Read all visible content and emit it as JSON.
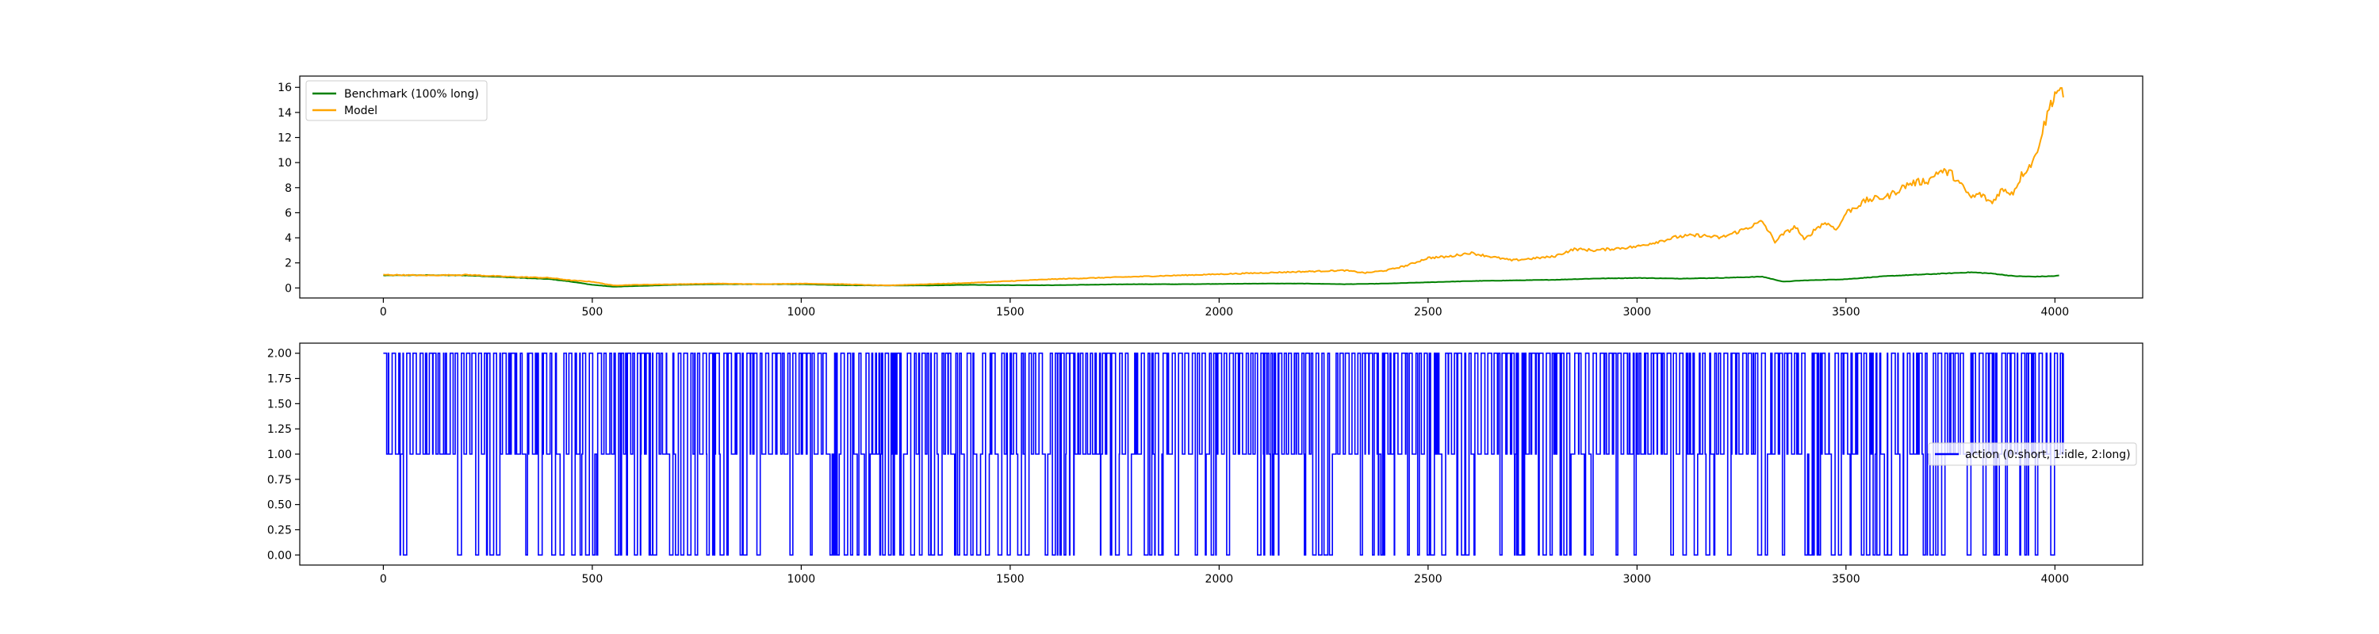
{
  "chart_data": [
    {
      "type": "line",
      "title": "",
      "xlabel": "",
      "ylabel": "",
      "xlim": [
        -200,
        4210
      ],
      "ylim": [
        -0.8,
        16.9
      ],
      "xticks": [
        0,
        500,
        1000,
        1500,
        2000,
        2500,
        3000,
        3500,
        4000
      ],
      "yticks": [
        0,
        2,
        4,
        6,
        8,
        10,
        12,
        14,
        16
      ],
      "grid": false,
      "legend": "top-left",
      "series": [
        {
          "name": "Benchmark (100% long)",
          "color": "#008000",
          "points": [
            [
              0,
              1.0
            ],
            [
              100,
              1.02
            ],
            [
              200,
              1.0
            ],
            [
              300,
              0.85
            ],
            [
              400,
              0.7
            ],
            [
              450,
              0.5
            ],
            [
              500,
              0.25
            ],
            [
              550,
              0.1
            ],
            [
              600,
              0.15
            ],
            [
              700,
              0.25
            ],
            [
              800,
              0.3
            ],
            [
              900,
              0.3
            ],
            [
              1000,
              0.3
            ],
            [
              1100,
              0.22
            ],
            [
              1200,
              0.2
            ],
            [
              1300,
              0.2
            ],
            [
              1400,
              0.25
            ],
            [
              1500,
              0.22
            ],
            [
              1600,
              0.22
            ],
            [
              1700,
              0.26
            ],
            [
              1800,
              0.3
            ],
            [
              1900,
              0.3
            ],
            [
              2000,
              0.32
            ],
            [
              2100,
              0.35
            ],
            [
              2200,
              0.35
            ],
            [
              2300,
              0.3
            ],
            [
              2400,
              0.35
            ],
            [
              2500,
              0.45
            ],
            [
              2600,
              0.55
            ],
            [
              2700,
              0.6
            ],
            [
              2800,
              0.65
            ],
            [
              2900,
              0.75
            ],
            [
              3000,
              0.8
            ],
            [
              3100,
              0.75
            ],
            [
              3200,
              0.8
            ],
            [
              3300,
              0.9
            ],
            [
              3350,
              0.5
            ],
            [
              3400,
              0.6
            ],
            [
              3500,
              0.7
            ],
            [
              3600,
              0.95
            ],
            [
              3700,
              1.1
            ],
            [
              3800,
              1.25
            ],
            [
              3850,
              1.15
            ],
            [
              3900,
              0.95
            ],
            [
              3950,
              0.9
            ],
            [
              4000,
              0.95
            ],
            [
              4010,
              1.0
            ]
          ]
        },
        {
          "name": "Model",
          "color": "#ffa500",
          "points": [
            [
              0,
              1.05
            ],
            [
              100,
              1.0
            ],
            [
              200,
              1.05
            ],
            [
              300,
              0.9
            ],
            [
              400,
              0.8
            ],
            [
              450,
              0.6
            ],
            [
              500,
              0.5
            ],
            [
              550,
              0.2
            ],
            [
              600,
              0.25
            ],
            [
              700,
              0.3
            ],
            [
              800,
              0.35
            ],
            [
              900,
              0.3
            ],
            [
              1000,
              0.35
            ],
            [
              1100,
              0.3
            ],
            [
              1200,
              0.2
            ],
            [
              1300,
              0.3
            ],
            [
              1400,
              0.4
            ],
            [
              1500,
              0.55
            ],
            [
              1600,
              0.7
            ],
            [
              1700,
              0.8
            ],
            [
              1800,
              0.9
            ],
            [
              1900,
              1.0
            ],
            [
              2000,
              1.1
            ],
            [
              2100,
              1.2
            ],
            [
              2200,
              1.3
            ],
            [
              2300,
              1.4
            ],
            [
              2350,
              1.2
            ],
            [
              2400,
              1.4
            ],
            [
              2450,
              1.8
            ],
            [
              2500,
              2.4
            ],
            [
              2550,
              2.5
            ],
            [
              2600,
              2.8
            ],
            [
              2650,
              2.5
            ],
            [
              2700,
              2.2
            ],
            [
              2800,
              2.5
            ],
            [
              2850,
              3.1
            ],
            [
              2900,
              3.0
            ],
            [
              3000,
              3.3
            ],
            [
              3050,
              3.7
            ],
            [
              3100,
              4.1
            ],
            [
              3150,
              4.2
            ],
            [
              3200,
              4.0
            ],
            [
              3250,
              4.6
            ],
            [
              3300,
              5.3
            ],
            [
              3330,
              3.7
            ],
            [
              3350,
              4.3
            ],
            [
              3380,
              4.9
            ],
            [
              3400,
              3.8
            ],
            [
              3430,
              4.8
            ],
            [
              3450,
              5.2
            ],
            [
              3480,
              4.7
            ],
            [
              3500,
              6.0
            ],
            [
              3550,
              7.0
            ],
            [
              3600,
              7.3
            ],
            [
              3650,
              8.3
            ],
            [
              3700,
              8.6
            ],
            [
              3720,
              9.3
            ],
            [
              3750,
              9.2
            ],
            [
              3780,
              8.0
            ],
            [
              3800,
              7.2
            ],
            [
              3820,
              7.5
            ],
            [
              3840,
              7.0
            ],
            [
              3850,
              6.8
            ],
            [
              3870,
              7.8
            ],
            [
              3900,
              7.6
            ],
            [
              3920,
              9.0
            ],
            [
              3950,
              10.2
            ],
            [
              3970,
              12.5
            ],
            [
              3990,
              14.7
            ],
            [
              4000,
              15.5
            ],
            [
              4010,
              15.9
            ],
            [
              4020,
              15.2
            ]
          ]
        }
      ]
    },
    {
      "type": "line",
      "title": "",
      "xlabel": "",
      "ylabel": "",
      "xlim": [
        -200,
        4210
      ],
      "ylim": [
        -0.1,
        2.1
      ],
      "xticks": [
        0,
        500,
        1000,
        1500,
        2000,
        2500,
        3000,
        3500,
        4000
      ],
      "yticks": [
        "0.00",
        "0.25",
        "0.50",
        "0.75",
        "1.00",
        "1.25",
        "1.50",
        "1.75",
        "2.00"
      ],
      "grid": false,
      "legend": "center-right",
      "series": [
        {
          "name": "action (0:short, 1:idle, 2:long)",
          "color": "#0000ff",
          "x_range": [
            0,
            4020
          ],
          "values_set": [
            0,
            1,
            2
          ]
        }
      ]
    }
  ]
}
